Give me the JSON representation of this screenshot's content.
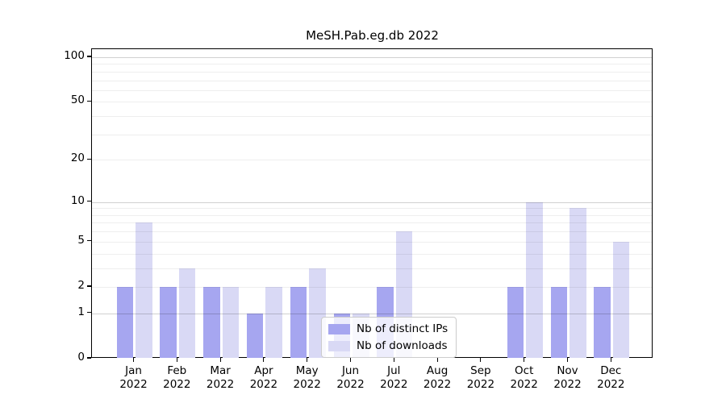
{
  "title": "MeSH.Pab.eg.db 2022",
  "colors": {
    "ips_bar": "#a6a6f0",
    "downloads_bar": "#d9d9f5",
    "grid_major": "rgba(0,0,0,0.18)",
    "grid_minor": "rgba(0,0,0,0.065)",
    "axis": "#000000",
    "legend_border": "#cccccc"
  },
  "chart_data": {
    "type": "bar",
    "title": "MeSH.Pab.eg.db 2022",
    "scale": "log10(value+1)",
    "categories": [
      "Jan",
      "Feb",
      "Mar",
      "Apr",
      "May",
      "Jun",
      "Jul",
      "Aug",
      "Sep",
      "Oct",
      "Nov",
      "Dec"
    ],
    "category_year": "2022",
    "series": [
      {
        "name": "Nb of distinct IPs",
        "color_key": "ips_bar",
        "values": [
          2,
          2,
          2,
          1,
          2,
          1,
          2,
          0,
          0,
          2,
          2,
          2
        ]
      },
      {
        "name": "Nb of downloads",
        "color_key": "downloads_bar",
        "values": [
          7,
          3,
          2,
          2,
          3,
          1,
          6,
          0,
          0,
          10,
          9,
          5
        ]
      }
    ],
    "y_ticks": [
      0,
      1,
      2,
      5,
      10,
      20,
      50,
      100
    ],
    "ylim": [
      0,
      100
    ],
    "grid_major_values": [
      1,
      10,
      100
    ],
    "grid_minor_values": [
      2,
      3,
      4,
      5,
      6,
      7,
      8,
      9,
      20,
      30,
      40,
      50,
      60,
      70,
      80,
      90
    ],
    "legend_position": "lower center",
    "xlabel": "",
    "ylabel": ""
  },
  "legend": {
    "items": [
      {
        "label": "Nb of distinct IPs"
      },
      {
        "label": "Nb of downloads"
      }
    ]
  }
}
